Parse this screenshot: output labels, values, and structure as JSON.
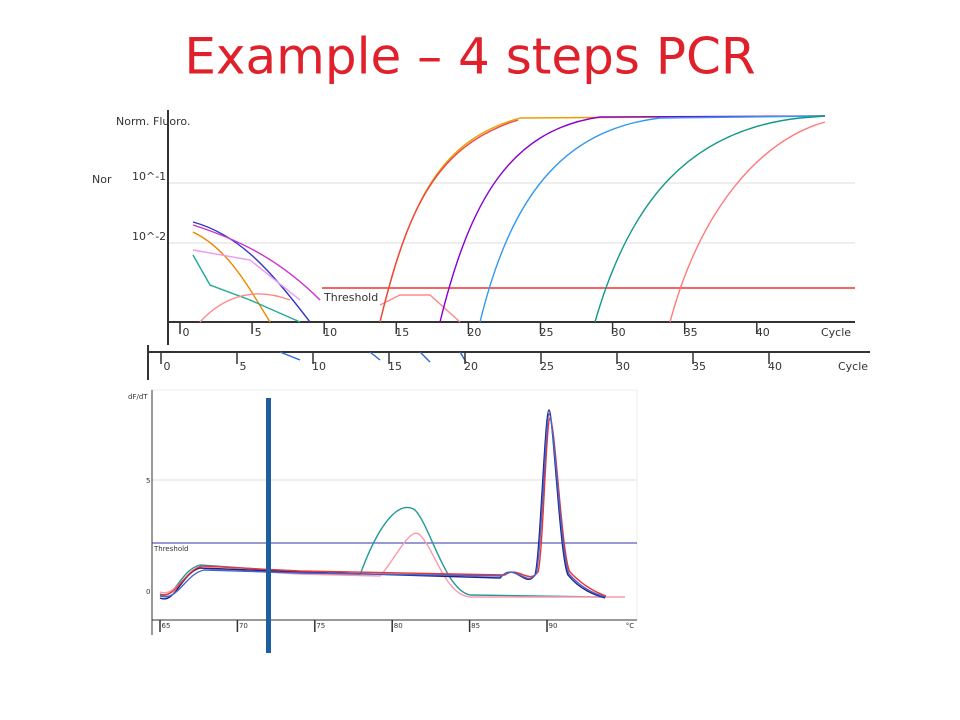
{
  "title": "Example – 4 steps PCR",
  "amplification": {
    "y_label": "Norm. Fluoro.",
    "y_ticks": [
      "10^-1",
      "10^-2"
    ],
    "x_ticks": [
      "0",
      "5",
      "10",
      "15",
      "20",
      "25",
      "30",
      "35",
      "40"
    ],
    "x_label": "Cycle",
    "threshold": "Threshold"
  },
  "background_chart": {
    "y_label": "Nor",
    "x_ticks": [
      "0",
      "5",
      "10",
      "15",
      "20",
      "25",
      "30",
      "35",
      "40"
    ],
    "x_label": "Cycle"
  },
  "melt": {
    "y_label": "dF/dT",
    "y_ticks": [
      "5",
      "0"
    ],
    "threshold": "Threshold",
    "x_ticks": [
      "65",
      "70",
      "75",
      "80",
      "85",
      "90"
    ],
    "x_label": "°C"
  }
}
